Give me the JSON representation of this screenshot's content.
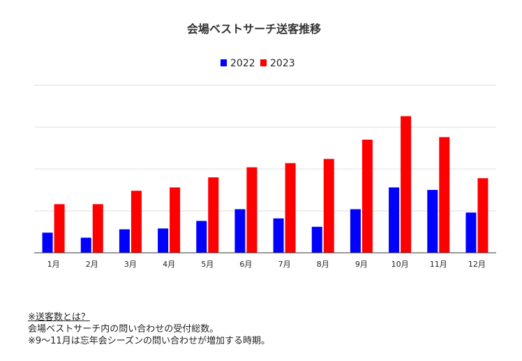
{
  "chart_data": {
    "type": "bar",
    "title": "会場ベストサーチ送客推移",
    "categories": [
      "1月",
      "2月",
      "3月",
      "4月",
      "5月",
      "6月",
      "7月",
      "8月",
      "9月",
      "10月",
      "11月",
      "12月"
    ],
    "series": [
      {
        "name": "2022",
        "color": "#0000ff",
        "values": [
          12,
          9,
          14,
          14.5,
          19,
          26,
          20.5,
          15.5,
          26,
          39,
          37.5,
          24
        ]
      },
      {
        "name": "2023",
        "color": "#ff0000",
        "values": [
          29,
          29,
          37,
          39,
          45,
          51,
          53.5,
          56,
          67.5,
          81.5,
          69,
          44.5
        ]
      }
    ],
    "ylim": [
      0,
      100
    ],
    "grid": true,
    "legend": "top-center",
    "xlabel": "",
    "ylabel": ""
  },
  "footnote": {
    "heading": "※送客数とは？",
    "line1": "会場ベストサーチ内の問い合わせの受付総数。",
    "line2": "※9～11月は忘年会シーズンの問い合わせが増加する時期。"
  }
}
